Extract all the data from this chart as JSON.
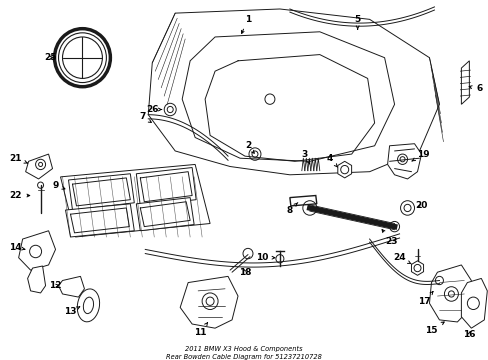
{
  "title": "2011 BMW X3 Hood & Components\nRear Bowden Cable Diagram for 51237210728",
  "bg_color": "#ffffff",
  "line_color": "#1a1a1a",
  "label_color": "#000000",
  "figsize": [
    4.89,
    3.6
  ],
  "dpi": 100
}
